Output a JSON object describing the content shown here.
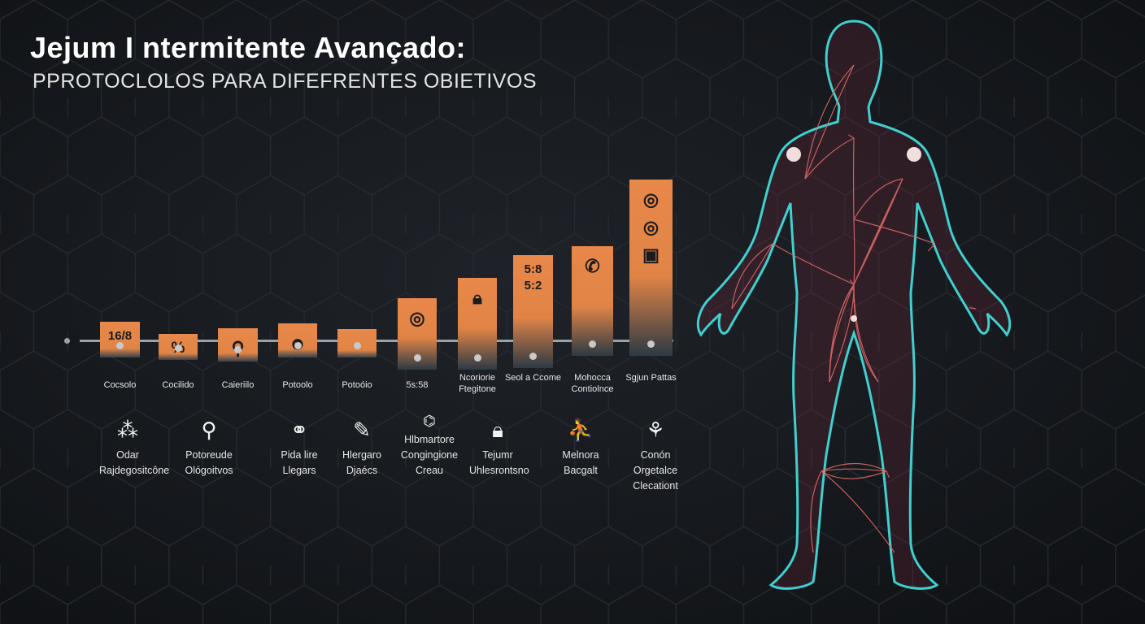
{
  "header": {
    "title": "Jejum I ntermitente Avançado:",
    "subtitle": "PPROTOCLOLOS PARA  DIFEFRENTES OBIETIVOS"
  },
  "colors": {
    "accent": "#e8884a",
    "background": "#15181c",
    "body_outline": "#3fd0cf",
    "body_veins": "#e26a6a"
  },
  "timeline": [
    {
      "text": "16/8",
      "icon": "",
      "label": "Cocsolo"
    },
    {
      "text": "%",
      "icon": "",
      "label": "Cocilido"
    },
    {
      "text": "",
      "icon": "location-pin-icon",
      "label": "Caieriilo"
    },
    {
      "text": "",
      "icon": "people-icon",
      "label": "Potoolo"
    },
    {
      "text": "",
      "icon": "",
      "label": "Potoóio"
    },
    {
      "text": "",
      "icon": "target-icon",
      "label": "5s:58"
    },
    {
      "text": "",
      "icon": "lock-icon",
      "label": "Ncoriorie Ftegitone"
    },
    {
      "text": "5:8 5:2",
      "icon": "",
      "label": "Seol a Ccome"
    },
    {
      "text": "",
      "icon": "phone-icon",
      "label": "Mohocca Contiolnce"
    },
    {
      "text": "",
      "icon": "target-camera-icon",
      "label": "Sgjun Pattas"
    }
  ],
  "objectives": [
    {
      "icon": "chart-icon",
      "label": "Odar Rajdegositcône"
    },
    {
      "icon": "pin-line-icon",
      "label": "Potoreude Ológoitvos"
    },
    {
      "icon": "circles-icon",
      "label": "Pida lire Llegars"
    },
    {
      "icon": "pencil-icon",
      "label": "Hlergaro Djaécs"
    },
    {
      "icon": "molecule-icon",
      "label": "Hlbmartore Congingione Creau"
    },
    {
      "icon": "lock-icon",
      "label": "Tejumr Uhlesrontsno"
    },
    {
      "icon": "exercise-icon",
      "label": "Melnora Bacgalt"
    },
    {
      "icon": "plant-icon",
      "label": "Conón Orgetalce Clecationt"
    }
  ]
}
